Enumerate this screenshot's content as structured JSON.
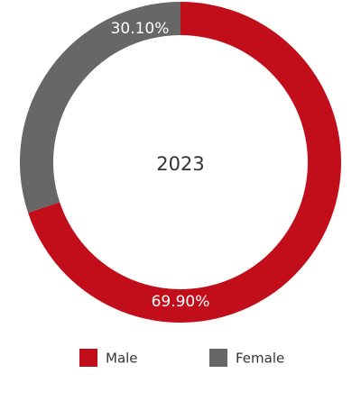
{
  "chart_data": {
    "type": "donut",
    "center_text": "2023",
    "categories": [
      "Male",
      "Female"
    ],
    "values": [
      69.9,
      30.1
    ],
    "value_labels": [
      "69.90%",
      "30.10%"
    ],
    "colors": [
      "#c20e1a",
      "#676767"
    ],
    "legend": "bottom"
  }
}
